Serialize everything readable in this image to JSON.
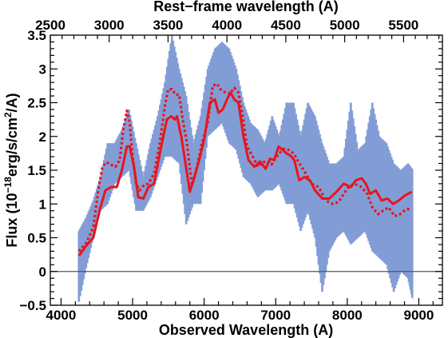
{
  "colors": {
    "spectrum": "#7f9ad6",
    "model_solid": "#e8141c",
    "model_dotted": "#e8141c",
    "zero_line": "#555555",
    "axis": "#000000"
  },
  "chart_data": {
    "type": "line",
    "title": "",
    "xlabel": "Observed Wavelength (A)",
    "ylabel_parts": [
      "Flux (10",
      "−18",
      "erg/s/cm",
      "2",
      "/A)"
    ],
    "top_xlabel": "Rest−frame wavelength (A)",
    "xlim": [
      3850,
      9330
    ],
    "ylim": [
      -0.5,
      3.5
    ],
    "top_xlim": [
      2500,
      5830
    ],
    "x_ticks": [
      4000,
      5000,
      6000,
      7000,
      8000,
      9000
    ],
    "x_tick_labels": [
      "4000",
      "5000",
      "6000",
      "7000",
      "8000",
      "9000"
    ],
    "y_ticks": [
      -0.5,
      0,
      0.5,
      1,
      1.5,
      2,
      2.5,
      3,
      3.5
    ],
    "y_tick_labels": [
      "−0.5",
      "0",
      "0.5",
      "1",
      "1.5",
      "2",
      "2.5",
      "3",
      "3.5"
    ],
    "top_x_ticks": [
      2500,
      3000,
      3500,
      4000,
      4500,
      5000,
      5500
    ],
    "top_x_tick_labels": [
      "2500",
      "3000",
      "3500",
      "4000",
      "4500",
      "5000",
      "5500"
    ],
    "grid": false,
    "reference_line_y": 0,
    "series": [
      {
        "style": "band",
        "x": [
          4250,
          4350,
          4450,
          4550,
          4650,
          4750,
          4850,
          4950,
          5050,
          5150,
          5250,
          5350,
          5450,
          5550,
          5650,
          5750,
          5850,
          5950,
          6050,
          6150,
          6250,
          6350,
          6450,
          6550,
          6650,
          6750,
          6850,
          6950,
          7050,
          7150,
          7250,
          7350,
          7450,
          7550,
          7650,
          7750,
          7850,
          7950,
          8050,
          8150,
          8250,
          8350,
          8450,
          8550,
          8650,
          8750,
          8850,
          8920
        ],
        "lower": [
          -0.45,
          0.05,
          0.5,
          0.9,
          1.0,
          1.3,
          1.4,
          1.5,
          0.9,
          0.9,
          1.1,
          1.4,
          1.7,
          1.7,
          1.6,
          0.7,
          1.0,
          1.0,
          2.0,
          2.1,
          2.2,
          1.9,
          1.8,
          1.4,
          1.3,
          1.1,
          1.2,
          1.2,
          1.3,
          1.0,
          1.0,
          0.6,
          0.9,
          0.5,
          -0.3,
          0.3,
          0.5,
          0.6,
          0.4,
          0.5,
          0.6,
          0.3,
          0.2,
          0.1,
          -0.3,
          0.0,
          -0.1,
          -0.45
        ],
        "upper": [
          0.6,
          0.8,
          1.05,
          1.4,
          1.9,
          1.9,
          2.1,
          2.4,
          1.9,
          1.4,
          1.9,
          2.3,
          2.8,
          3.5,
          3.0,
          2.6,
          1.9,
          2.3,
          3.0,
          3.3,
          3.4,
          3.3,
          3.0,
          2.5,
          2.2,
          2.1,
          1.9,
          2.3,
          2.0,
          2.5,
          2.5,
          2.0,
          2.5,
          2.3,
          1.9,
          1.6,
          1.6,
          1.7,
          2.5,
          1.8,
          1.9,
          2.5,
          2.0,
          1.9,
          1.6,
          1.5,
          1.6,
          1.5
        ]
      },
      {
        "style": "solid",
        "x": [
          4250,
          4350,
          4450,
          4550,
          4620,
          4700,
          4780,
          4850,
          4920,
          4960,
          5020,
          5080,
          5150,
          5220,
          5300,
          5400,
          5480,
          5540,
          5590,
          5620,
          5680,
          5740,
          5800,
          5860,
          5930,
          6000,
          6080,
          6150,
          6200,
          6260,
          6320,
          6370,
          6420,
          6480,
          6550,
          6620,
          6700,
          6780,
          6860,
          6920,
          6980,
          7040,
          7100,
          7150,
          7200,
          7260,
          7330,
          7400,
          7480,
          7550,
          7650,
          7750,
          7850,
          7950,
          8050,
          8120,
          8200,
          8260,
          8320,
          8400,
          8480,
          8560,
          8640,
          8720,
          8800,
          8900
        ],
        "y": [
          0.23,
          0.38,
          0.5,
          0.95,
          1.2,
          1.25,
          1.25,
          1.5,
          1.85,
          1.85,
          1.55,
          1.1,
          1.08,
          1.25,
          1.3,
          1.85,
          2.25,
          2.3,
          2.25,
          2.3,
          2.0,
          1.6,
          1.18,
          1.38,
          1.65,
          1.95,
          2.5,
          2.55,
          2.35,
          2.4,
          2.55,
          2.65,
          2.55,
          2.5,
          2.0,
          1.65,
          1.55,
          1.63,
          1.52,
          1.67,
          1.65,
          1.85,
          1.8,
          1.75,
          1.72,
          1.65,
          1.35,
          1.4,
          1.35,
          1.2,
          1.08,
          1.08,
          1.18,
          1.3,
          1.25,
          1.35,
          1.38,
          1.3,
          1.15,
          1.2,
          1.05,
          1.08,
          1.0,
          1.05,
          1.12,
          1.18
        ]
      },
      {
        "style": "dotted",
        "x": [
          4250,
          4350,
          4450,
          4520,
          4580,
          4630,
          4700,
          4760,
          4820,
          4870,
          4920,
          4960,
          5000,
          5050,
          5100,
          5160,
          5220,
          5300,
          5380,
          5450,
          5500,
          5550,
          5600,
          5650,
          5700,
          5760,
          5830,
          5900,
          5970,
          6050,
          6120,
          6180,
          6240,
          6300,
          6360,
          6420,
          6480,
          6540,
          6600,
          6680,
          6750,
          6820,
          6880,
          6940,
          7000,
          7060,
          7120,
          7180,
          7250,
          7330,
          7420,
          7500,
          7600,
          7700,
          7800,
          7880,
          7950,
          8020,
          8100,
          8200,
          8280,
          8350,
          8430,
          8500,
          8580,
          8660,
          8740,
          8820,
          8900
        ],
        "y": [
          0.3,
          0.42,
          0.65,
          1.2,
          1.55,
          1.62,
          1.58,
          1.55,
          1.65,
          2.1,
          2.38,
          2.2,
          1.7,
          1.3,
          1.2,
          1.28,
          1.3,
          1.45,
          1.9,
          2.45,
          2.7,
          2.7,
          2.62,
          2.62,
          2.25,
          1.9,
          1.28,
          1.55,
          1.9,
          2.2,
          2.75,
          2.78,
          2.68,
          2.65,
          2.63,
          2.72,
          2.65,
          2.3,
          1.85,
          1.7,
          1.55,
          1.62,
          1.63,
          1.58,
          1.68,
          1.76,
          1.82,
          1.8,
          1.75,
          1.6,
          1.45,
          1.3,
          1.25,
          1.05,
          1.0,
          1.03,
          1.15,
          1.25,
          1.3,
          1.25,
          1.15,
          0.95,
          0.85,
          0.9,
          0.95,
          0.82,
          0.85,
          0.92,
          0.93
        ]
      }
    ]
  }
}
